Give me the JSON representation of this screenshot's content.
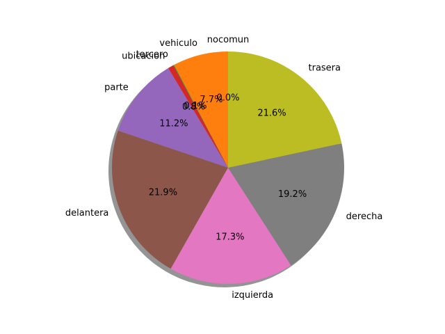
{
  "chart_data": {
    "type": "pie",
    "title": "",
    "start_angle_deg": 90,
    "direction": "counterclockwise",
    "shadow": true,
    "slices": [
      {
        "label": "nocomun",
        "value": 0.0,
        "pct": "0.0%",
        "color": "#1f77b4"
      },
      {
        "label": "vehiculo",
        "value": 7.7,
        "pct": "7.7%",
        "color": "#ff7f0e"
      },
      {
        "label": "tercero",
        "value": 0.1,
        "pct": "0.1%",
        "color": "#2ca02c"
      },
      {
        "label": "ubicacion",
        "value": 0.8,
        "pct": "0.8%",
        "color": "#d62728"
      },
      {
        "label": "parte",
        "value": 11.2,
        "pct": "11.2%",
        "color": "#9467bd"
      },
      {
        "label": "delantera",
        "value": 21.9,
        "pct": "21.9%",
        "color": "#8c564b"
      },
      {
        "label": "izquierda",
        "value": 17.3,
        "pct": "17.3%",
        "color": "#e377c2"
      },
      {
        "label": "derecha",
        "value": 19.2,
        "pct": "19.2%",
        "color": "#7f7f7f"
      },
      {
        "label": "trasera",
        "value": 21.6,
        "pct": "21.6%",
        "color": "#bcbd22"
      }
    ]
  }
}
